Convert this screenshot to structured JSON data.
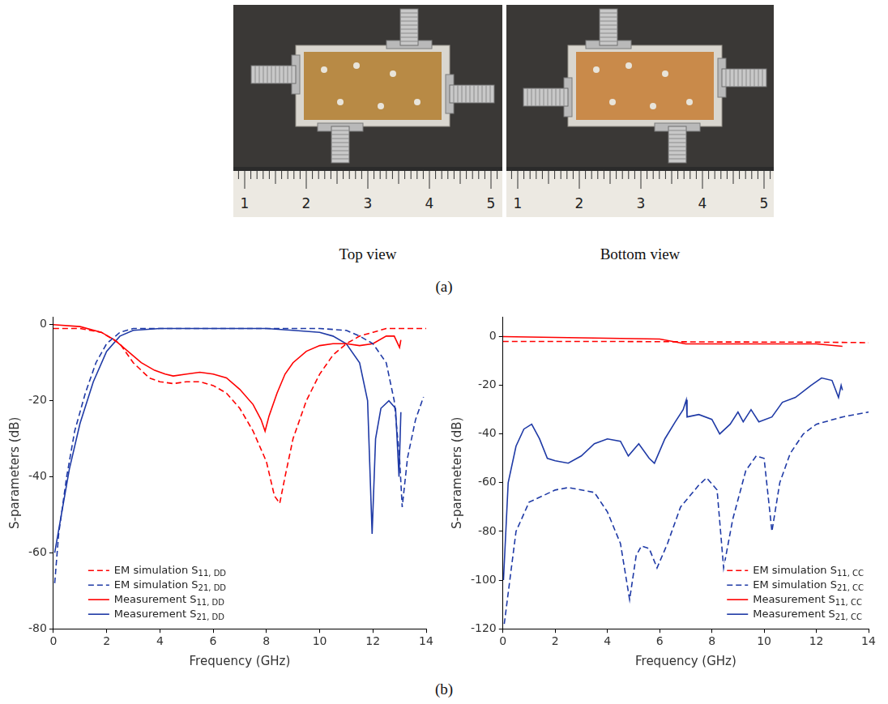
{
  "figure": {
    "photos": [
      {
        "caption": "Top view",
        "ruler_labels": [
          1,
          2,
          3,
          4,
          5
        ]
      },
      {
        "caption": "Bottom view",
        "ruler_labels": [
          1,
          2,
          3,
          4,
          5
        ]
      }
    ],
    "panel_labels": [
      "(a)",
      "(b)"
    ]
  },
  "chart_data": [
    {
      "type": "line",
      "x_label": "Frequency (GHz)",
      "y_label": "S-parameters (dB)",
      "xlim": [
        0,
        14
      ],
      "xticks": [
        0,
        2,
        4,
        6,
        8,
        10,
        12,
        14
      ],
      "ylim": [
        -80,
        2
      ],
      "yticks": [
        -80,
        -60,
        -40,
        -20,
        0
      ],
      "grid": false,
      "legend": "lower left",
      "series": [
        {
          "name": "EM simulation S11, DD",
          "color": "#ff0000",
          "line_style": "dashed",
          "x": [
            0,
            1,
            1.8,
            2.5,
            3,
            3.6,
            4,
            4.5,
            5,
            5.5,
            6,
            6.5,
            7,
            7.5,
            8,
            8.3,
            8.5,
            8.7,
            9,
            9.5,
            10,
            10.5,
            11,
            11.5,
            12,
            12.5,
            14
          ],
          "values": [
            -1,
            -1,
            -2,
            -5,
            -10,
            -14,
            -15,
            -15.5,
            -15,
            -15,
            -16,
            -18,
            -22,
            -28,
            -36,
            -45,
            -47,
            -40,
            -30,
            -20,
            -13,
            -8,
            -5,
            -3,
            -2,
            -1,
            -1
          ]
        },
        {
          "name": "EM simulation S21, DD",
          "color": "#1f3aa6",
          "line_style": "dashed",
          "x": [
            0.05,
            0.2,
            0.5,
            0.8,
            1.2,
            1.6,
            2,
            2.5,
            3,
            4,
            6,
            8,
            10,
            11,
            11.5,
            12,
            12.5,
            12.8,
            13,
            13.1,
            13.3,
            13.6,
            13.9
          ],
          "values": [
            -68,
            -55,
            -40,
            -28,
            -18,
            -10,
            -5,
            -2,
            -1,
            -1,
            -1,
            -1,
            -1,
            -1.5,
            -3,
            -5,
            -10,
            -20,
            -35,
            -48,
            -35,
            -25,
            -19
          ]
        },
        {
          "name": "Measurement S11, DD",
          "color": "#ff0000",
          "line_style": "solid",
          "x": [
            0,
            1,
            1.8,
            2.3,
            2.8,
            3.3,
            3.8,
            4.2,
            4.5,
            5,
            5.5,
            6,
            6.5,
            7,
            7.5,
            7.8,
            7.95,
            8.1,
            8.4,
            8.7,
            9,
            9.5,
            10,
            10.5,
            11,
            11.5,
            12,
            12.5,
            12.8,
            13,
            13.05
          ],
          "values": [
            0,
            -0.5,
            -2,
            -4,
            -7,
            -10,
            -12,
            -13,
            -13.5,
            -13,
            -12.5,
            -13,
            -14,
            -17,
            -21,
            -25,
            -28,
            -24,
            -18,
            -13,
            -10,
            -7,
            -5.5,
            -5,
            -5,
            -5.5,
            -5,
            -3,
            -3,
            -6,
            -4
          ]
        },
        {
          "name": "Measurement S21, DD",
          "color": "#1f3aa6",
          "line_style": "solid",
          "x": [
            0.05,
            0.3,
            0.6,
            1,
            1.5,
            2,
            2.5,
            3,
            4,
            6,
            8,
            9,
            10,
            10.5,
            11,
            11.5,
            11.8,
            11.97,
            12.1,
            12.3,
            12.6,
            12.85,
            12.98,
            13.05
          ],
          "values": [
            -60,
            -50,
            -38,
            -26,
            -15,
            -7,
            -3,
            -1.5,
            -1,
            -1,
            -1,
            -1.5,
            -2,
            -3,
            -5,
            -10,
            -20,
            -55,
            -30,
            -22,
            -20,
            -22,
            -40,
            -23
          ]
        }
      ]
    },
    {
      "type": "line",
      "x_label": "Frequency (GHz)",
      "y_label": "S-parameters (dB)",
      "xlim": [
        0,
        14
      ],
      "xticks": [
        0,
        2,
        4,
        6,
        8,
        10,
        12,
        14
      ],
      "ylim": [
        -120,
        8
      ],
      "yticks": [
        -120,
        -100,
        -80,
        -60,
        -40,
        -20,
        0
      ],
      "grid": false,
      "legend": "lower right",
      "series": [
        {
          "name": "EM simulation S11, CC",
          "color": "#ff0000",
          "line_style": "dashed",
          "x": [
            0,
            4,
            8,
            12,
            14
          ],
          "values": [
            -2,
            -2,
            -2.2,
            -2.3,
            -2.5
          ]
        },
        {
          "name": "EM simulation S21, CC",
          "color": "#1f3aa6",
          "line_style": "dashed",
          "x": [
            0.05,
            0.5,
            1,
            2,
            2.5,
            3.5,
            4,
            4.5,
            4.85,
            5.1,
            5.3,
            5.6,
            5.9,
            6.3,
            6.8,
            7.5,
            7.8,
            8.2,
            8.45,
            8.8,
            9.3,
            9.7,
            10,
            10.2,
            10.3,
            10.6,
            11,
            11.5,
            12,
            13,
            14
          ],
          "values": [
            -118,
            -80,
            -68,
            -63,
            -62,
            -64,
            -72,
            -85,
            -108,
            -90,
            -86,
            -87,
            -95,
            -85,
            -70,
            -61,
            -58,
            -63,
            -95,
            -75,
            -55,
            -49,
            -50,
            -70,
            -80,
            -60,
            -48,
            -40,
            -36,
            -33,
            -31
          ]
        },
        {
          "name": "Measurement S11, CC",
          "color": "#ff0000",
          "line_style": "solid",
          "x": [
            0,
            3,
            6,
            7,
            9,
            12,
            13
          ],
          "values": [
            0,
            -0.5,
            -1,
            -3,
            -3,
            -3,
            -4
          ]
        },
        {
          "name": "Measurement S21, CC",
          "color": "#1f3aa6",
          "line_style": "solid",
          "x": [
            0.02,
            0.2,
            0.5,
            0.8,
            1.1,
            1.4,
            1.7,
            2,
            2.5,
            3,
            3.5,
            4,
            4.5,
            4.8,
            5.2,
            5.6,
            5.8,
            6.2,
            6.6,
            6.9,
            7.02,
            7.05,
            7.5,
            8,
            8.3,
            8.7,
            9,
            9.2,
            9.5,
            9.8,
            10.3,
            10.7,
            11.2,
            11.8,
            12.2,
            12.6,
            12.85,
            12.95,
            13
          ],
          "values": [
            -100,
            -60,
            -45,
            -38,
            -36,
            -42,
            -50,
            -51,
            -52,
            -49,
            -44,
            -42,
            -43,
            -49,
            -44,
            -50,
            -52,
            -42,
            -35,
            -30,
            -26,
            -33,
            -32,
            -34,
            -40,
            -36,
            -31,
            -35,
            -30,
            -35,
            -33,
            -27,
            -25,
            -20,
            -17,
            -18,
            -25,
            -20,
            -22
          ]
        }
      ]
    }
  ]
}
